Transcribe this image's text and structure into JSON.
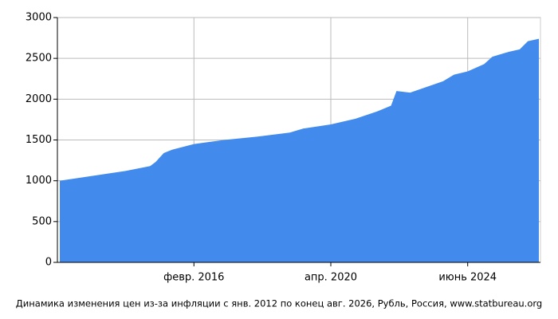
{
  "chart_data": {
    "type": "area",
    "caption": "Динамика изменения цен из-за инфляции с янв. 2012 по конец авг. 2026, Рубль, Россия, www.statbureau.org",
    "x": [
      "2012-01",
      "2013-01",
      "2014-01",
      "2014-10",
      "2014-12",
      "2015-03",
      "2015-06",
      "2016-02",
      "2017-01",
      "2018-01",
      "2019-01",
      "2019-06",
      "2020-04",
      "2021-01",
      "2021-09",
      "2022-02",
      "2022-04",
      "2022-09",
      "2023-03",
      "2023-09",
      "2024-01",
      "2024-06",
      "2024-12",
      "2025-03",
      "2025-09",
      "2026-01",
      "2026-04",
      "2026-08"
    ],
    "values": [
      1000,
      1060,
      1120,
      1180,
      1230,
      1340,
      1380,
      1450,
      1500,
      1540,
      1590,
      1640,
      1690,
      1760,
      1850,
      1920,
      2100,
      2080,
      2150,
      2220,
      2300,
      2340,
      2430,
      2520,
      2580,
      2610,
      2710,
      2740
    ],
    "color": "#428bec",
    "xlim": [
      "2012-01",
      "2026-08"
    ],
    "xticks": [
      {
        "value": "2016-02",
        "label": "февр. 2016"
      },
      {
        "value": "2020-04",
        "label": "апр. 2020"
      },
      {
        "value": "2024-06",
        "label": "июнь 2024"
      }
    ],
    "ylim": [
      0,
      3000
    ],
    "yticks": [
      0,
      500,
      1000,
      1500,
      2000,
      2500,
      3000
    ],
    "grid": true
  }
}
